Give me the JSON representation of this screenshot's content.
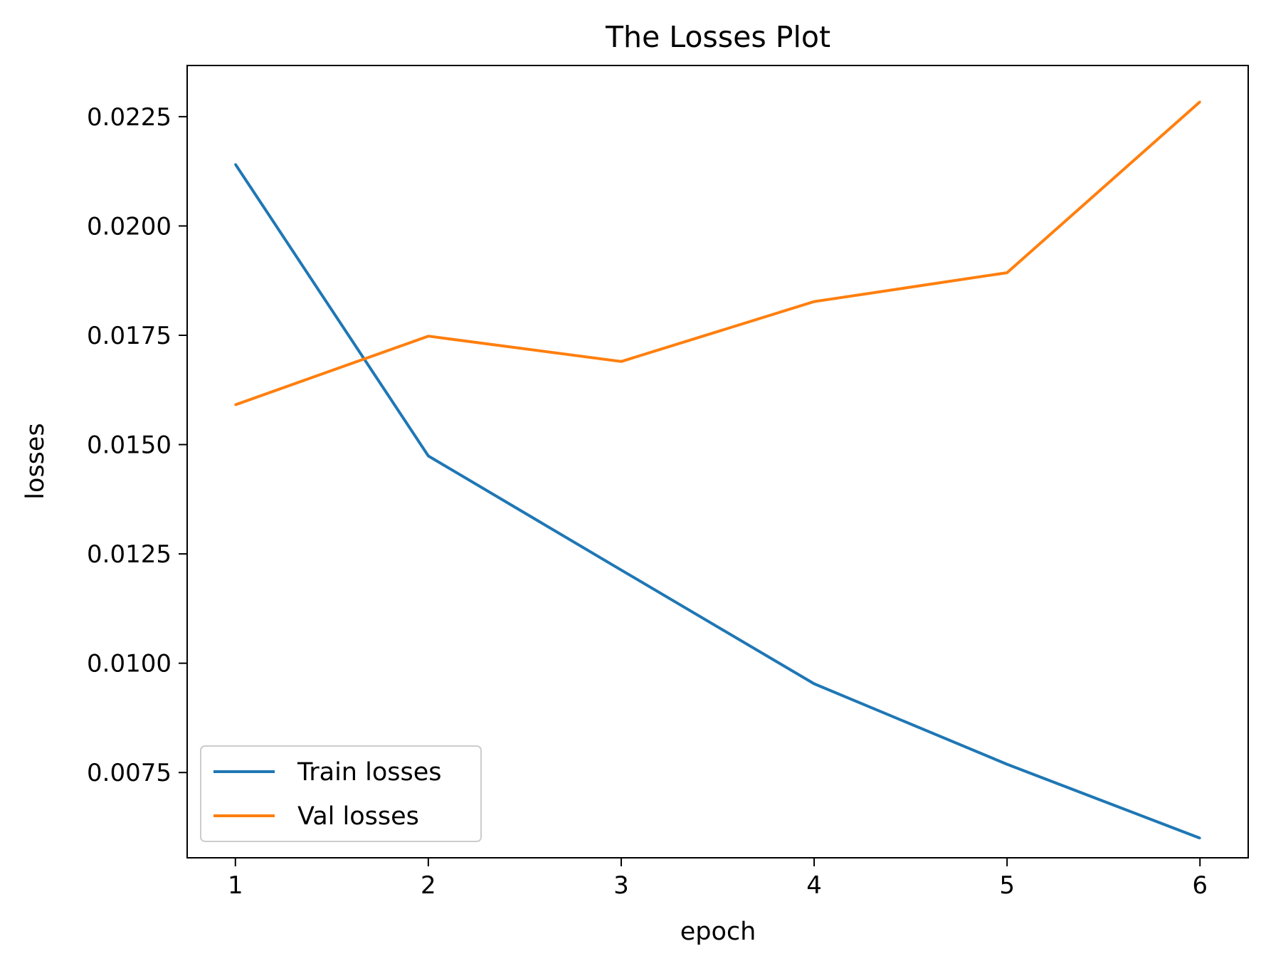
{
  "chart_data": {
    "type": "line",
    "title": "The Losses Plot",
    "xlabel": "epoch",
    "ylabel": "losses",
    "x": [
      1,
      2,
      3,
      4,
      5,
      6
    ],
    "xlim": [
      0.75,
      6.25
    ],
    "ylim": [
      0.00555,
      0.02367
    ],
    "xticks": [
      1,
      2,
      3,
      4,
      5,
      6
    ],
    "xtick_labels": [
      "1",
      "2",
      "3",
      "4",
      "5",
      "6"
    ],
    "yticks": [
      0.0075,
      0.01,
      0.0125,
      0.015,
      0.0175,
      0.02,
      0.0225
    ],
    "ytick_labels": [
      "0.0075",
      "0.0100",
      "0.0125",
      "0.0150",
      "0.0175",
      "0.0200",
      "0.0225"
    ],
    "grid": false,
    "legend_position": "lower-left",
    "series": [
      {
        "name": "Train losses",
        "color": "#1f77b4",
        "values": [
          0.02141,
          0.01474,
          0.01213,
          0.00953,
          0.00769,
          0.006
        ]
      },
      {
        "name": "Val losses",
        "color": "#ff7f0e",
        "values": [
          0.01591,
          0.01748,
          0.0169,
          0.01827,
          0.01893,
          0.02284
        ]
      }
    ]
  }
}
